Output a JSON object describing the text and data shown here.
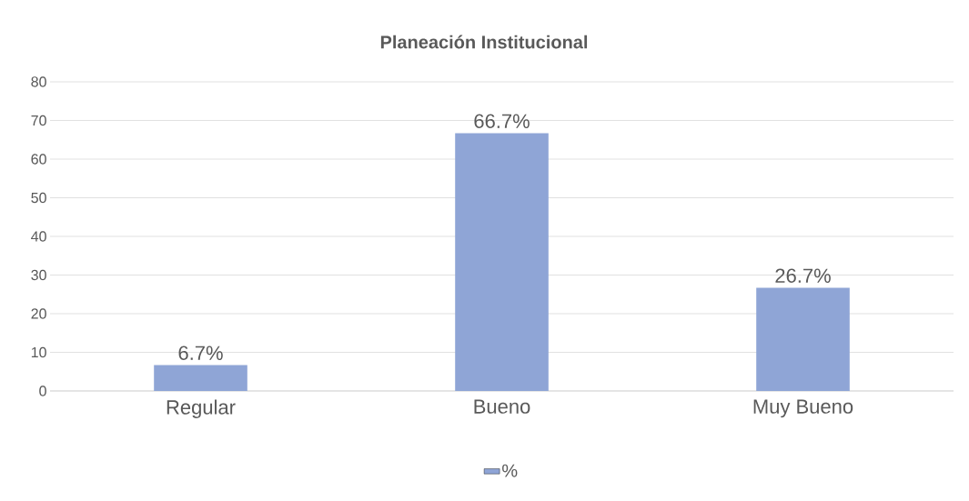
{
  "chart_data": {
    "type": "bar",
    "title": "Planeación Institucional",
    "categories": [
      "Regular",
      "Bueno",
      "Muy Bueno"
    ],
    "series": [
      {
        "name": "%",
        "color": "#8fa5d6",
        "values": [
          6.7,
          66.7,
          26.7
        ],
        "value_labels": [
          "6.7%",
          "66.7%",
          "26.7%"
        ]
      }
    ],
    "ylim": [
      0,
      80
    ],
    "yticks": [
      0,
      10,
      20,
      30,
      40,
      50,
      60,
      70,
      80
    ],
    "grid": "y",
    "legend": "bottom"
  }
}
